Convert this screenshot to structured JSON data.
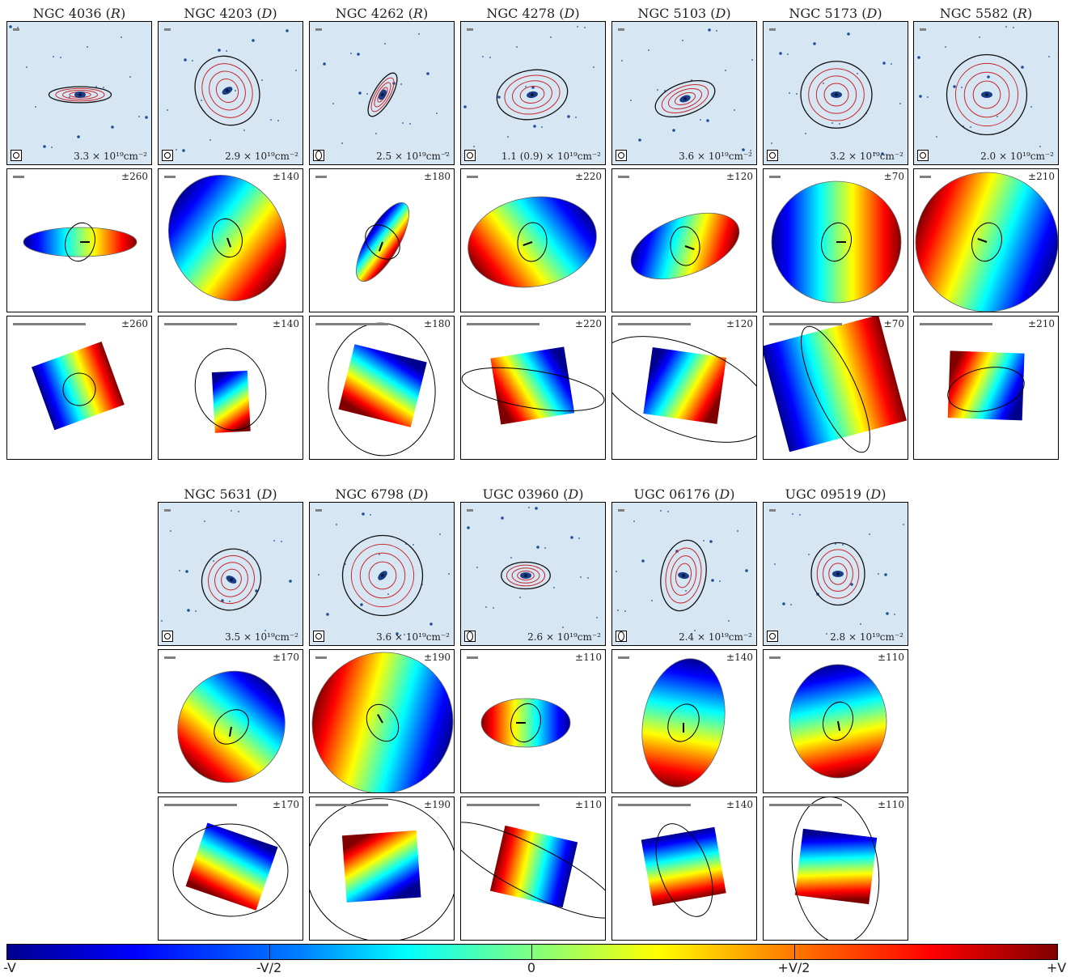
{
  "galaxies": [
    {
      "name": "NGC 4036",
      "type": "R",
      "column": "3.3 × 10¹⁹cm⁻²",
      "vel": "±260"
    },
    {
      "name": "NGC 4203",
      "type": "D",
      "column": "2.9 × 10¹⁹cm⁻²",
      "vel": "±140"
    },
    {
      "name": "NGC 4262",
      "type": "R",
      "column": "2.5 × 10¹⁹cm⁻²",
      "vel": "±180"
    },
    {
      "name": "NGC 4278",
      "type": "D",
      "column": "1.1 (0.9) × 10¹⁹cm⁻²",
      "vel": "±220"
    },
    {
      "name": "NGC 5103",
      "type": "D",
      "column": "3.6 × 10¹⁹cm⁻²",
      "vel": "±120"
    },
    {
      "name": "NGC 5173",
      "type": "D",
      "column": "3.2 × 10¹⁹cm⁻²",
      "vel": "±70"
    },
    {
      "name": "NGC 5582",
      "type": "R",
      "column": "2.0 × 10¹⁹cm⁻²",
      "vel": "±210"
    },
    {
      "name": "NGC 5631",
      "type": "D",
      "column": "3.5 × 10¹⁹cm⁻²",
      "vel": "±170"
    },
    {
      "name": "NGC 6798",
      "type": "D",
      "column": "3.6 × 10¹⁹cm⁻²",
      "vel": "±190"
    },
    {
      "name": "UGC 03960",
      "type": "D",
      "column": "2.6 × 10¹⁹cm⁻²",
      "vel": "±110"
    },
    {
      "name": "UGC 06176",
      "type": "D",
      "column": "2.4 × 10¹⁹cm⁻²",
      "vel": "±140"
    },
    {
      "name": "UGC 09519",
      "type": "D",
      "column": "2.8 × 10¹⁹cm⁻²",
      "vel": "±110"
    }
  ],
  "colorbar": {
    "labels": [
      "-V",
      "-V/2",
      "0",
      "+V/2",
      "+V"
    ],
    "colors": [
      "#00008f",
      "#0000ff",
      "#0080ff",
      "#00ffff",
      "#80ff80",
      "#ffff00",
      "#ff8000",
      "#ff0000",
      "#800000"
    ]
  }
}
